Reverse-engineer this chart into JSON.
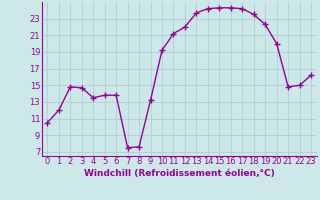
{
  "x": [
    0,
    1,
    2,
    3,
    4,
    5,
    6,
    7,
    8,
    9,
    10,
    11,
    12,
    13,
    14,
    15,
    16,
    17,
    18,
    19,
    20,
    21,
    22,
    23
  ],
  "y": [
    10.5,
    12.0,
    14.8,
    14.7,
    13.5,
    13.8,
    13.8,
    7.5,
    7.6,
    13.2,
    19.2,
    21.2,
    22.0,
    23.7,
    24.2,
    24.3,
    24.3,
    24.2,
    23.5,
    22.3,
    20.0,
    14.8,
    15.0,
    16.2
  ],
  "line_color": "#990099",
  "marker": "+",
  "markersize": 4,
  "markeredgewidth": 1.0,
  "linewidth": 1.0,
  "bg_color": "#cce8e8",
  "grid_color": "#aacccc",
  "xlabel": "Windchill (Refroidissement éolien,°C)",
  "xlabel_fontsize": 6.5,
  "tick_fontsize": 6.0,
  "xlim": [
    -0.5,
    23.5
  ],
  "ylim": [
    6.5,
    25.0
  ],
  "yticks": [
    7,
    9,
    11,
    13,
    15,
    17,
    19,
    21,
    23
  ],
  "xticks": [
    0,
    1,
    2,
    3,
    4,
    5,
    6,
    7,
    8,
    9,
    10,
    11,
    12,
    13,
    14,
    15,
    16,
    17,
    18,
    19,
    20,
    21,
    22,
    23
  ]
}
